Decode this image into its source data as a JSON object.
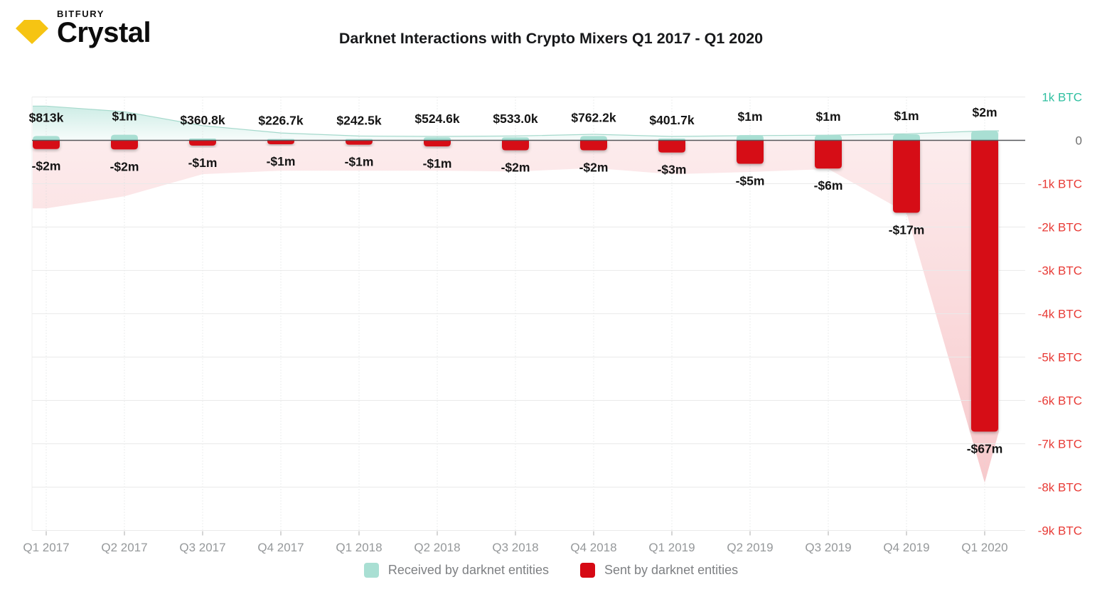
{
  "brand": {
    "company": "BITFURY",
    "product": "Crystal",
    "gem_color": "#F6C413"
  },
  "title": "Darknet Interactions with Crypto Mixers Q1 2017 - Q1 2020",
  "legend": {
    "received_label": "Received by darknet entities",
    "sent_label": "Sent by darknet entities"
  },
  "colors": {
    "received": "#A9DFD3",
    "sent": "#D60914",
    "y_positive": "#2FBFA0",
    "y_zero": "#6E6E6E",
    "y_negative": "#E83A35"
  },
  "chart_data": {
    "type": "bar",
    "title": "Darknet Interactions with Crypto Mixers Q1 2017 - Q1 2020",
    "categories": [
      "Q1 2017",
      "Q2 2017",
      "Q3 2017",
      "Q4 2017",
      "Q1 2018",
      "Q2 2018",
      "Q3 2018",
      "Q4 2018",
      "Q1 2019",
      "Q2 2019",
      "Q3 2019",
      "Q4 2019",
      "Q1 2020"
    ],
    "series": [
      {
        "name": "Received by darknet entities",
        "color": "#A9DFD3",
        "unit": "k BTC",
        "values_kbtc": [
          0.1,
          0.13,
          0.04,
          0.03,
          0.03,
          0.07,
          0.07,
          0.1,
          0.04,
          0.12,
          0.12,
          0.14,
          0.22
        ],
        "labels_usd": [
          "$813k",
          "$1m",
          "$360.8k",
          "$226.7k",
          "$242.5k",
          "$524.6k",
          "$533.0k",
          "$762.2k",
          "$401.7k",
          "$1m",
          "$1m",
          "$1m",
          "$2m"
        ]
      },
      {
        "name": "Sent by darknet entities",
        "color": "#D60914",
        "unit": "k BTC",
        "values_kbtc": [
          -0.2,
          -0.21,
          -0.12,
          -0.09,
          -0.1,
          -0.14,
          -0.23,
          -0.23,
          -0.28,
          -0.54,
          -0.65,
          -1.67,
          -6.72
        ],
        "labels_usd": [
          "-$2m",
          "-$2m",
          "-$1m",
          "-$1m",
          "-$1m",
          "-$1m",
          "-$2m",
          "-$2m",
          "-$3m",
          "-$5m",
          "-$6m",
          "-$17m",
          "-$67m"
        ]
      }
    ],
    "area_series": [
      {
        "name": "received-trend",
        "values_kbtc": [
          0.79,
          0.66,
          0.34,
          0.17,
          0.1,
          0.09,
          0.1,
          0.14,
          0.09,
          0.11,
          0.12,
          0.15,
          0.22
        ]
      },
      {
        "name": "sent-trend",
        "values_kbtc": [
          -1.57,
          -1.29,
          -0.78,
          -0.7,
          -0.7,
          -0.7,
          -0.72,
          -0.64,
          -0.78,
          -0.73,
          -0.66,
          -1.67,
          -7.9
        ]
      }
    ],
    "y_axis": {
      "position": "right",
      "ticks": [
        {
          "label": "1k BTC",
          "value": 1
        },
        {
          "label": "0",
          "value": 0
        },
        {
          "label": "-1k BTC",
          "value": -1
        },
        {
          "label": "-2k BTC",
          "value": -2
        },
        {
          "label": "-3k BTC",
          "value": -3
        },
        {
          "label": "-4k BTC",
          "value": -4
        },
        {
          "label": "-5k BTC",
          "value": -5
        },
        {
          "label": "-6k BTC",
          "value": -6
        },
        {
          "label": "-7k BTC",
          "value": -7
        },
        {
          "label": "-8k BTC",
          "value": -8
        },
        {
          "label": "-9k BTC",
          "value": -9
        }
      ]
    },
    "ylim": [
      -9.8,
      1.0
    ],
    "grid": true,
    "legend_position": "bottom"
  }
}
